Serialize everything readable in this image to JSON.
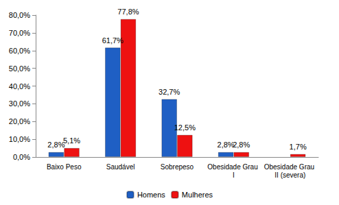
{
  "chart_data": {
    "type": "bar",
    "categories": [
      "Baixo Peso",
      "Saudável",
      "Sobrepeso",
      "Obesidade Grau I",
      "Obesidade Grau II (severa)"
    ],
    "series": [
      {
        "name": "Homens",
        "color": "#1f5fc4",
        "values": [
          2.8,
          61.7,
          32.7,
          2.8,
          null
        ],
        "value_labels": [
          "2,8%",
          "61,7%",
          "32,7%",
          "2,8%",
          null
        ]
      },
      {
        "name": "Mulheres",
        "color": "#ee1111",
        "values": [
          5.1,
          77.8,
          12.5,
          2.8,
          1.7
        ],
        "value_labels": [
          "5,1%",
          "77,8%",
          "12,5%",
          "2,8%",
          "1,7%"
        ]
      }
    ],
    "ylim": [
      0,
      80
    ],
    "yticks": [
      {
        "value": 0,
        "label": "0,0%"
      },
      {
        "value": 10,
        "label": "10,0%"
      },
      {
        "value": 20,
        "label": "20,0%"
      },
      {
        "value": 30,
        "label": "30,0%"
      },
      {
        "value": 40,
        "label": "40,0%"
      },
      {
        "value": 50,
        "label": "50,0%"
      },
      {
        "value": 60,
        "label": "60,0%"
      },
      {
        "value": 70,
        "label": "70,0%"
      },
      {
        "value": 80,
        "label": "80,0%"
      }
    ],
    "grid": false,
    "legend": "bottom",
    "data_labels": true
  }
}
